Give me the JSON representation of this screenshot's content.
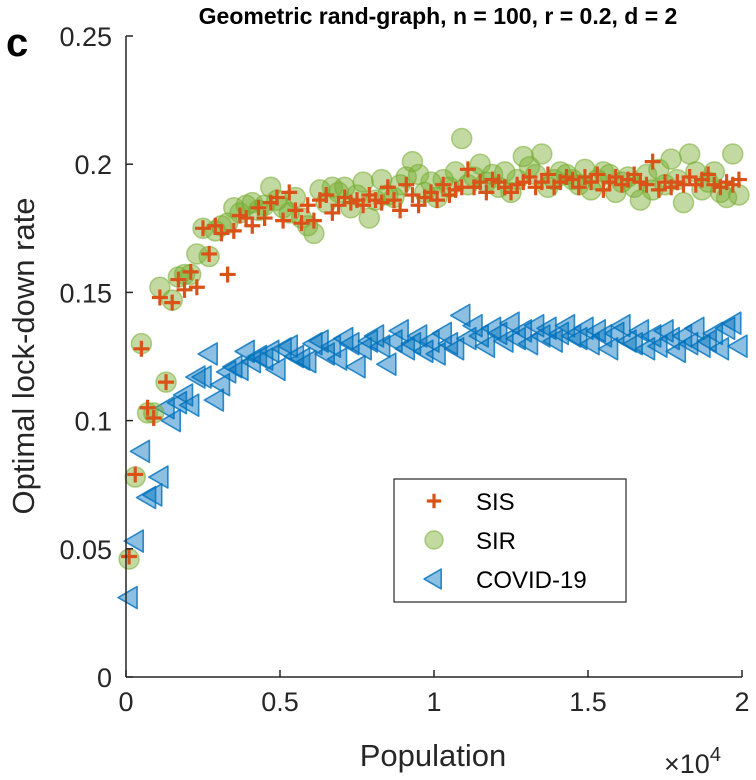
{
  "panel_label": "c",
  "chart_data": {
    "type": "scatter",
    "title": "Geometric rand-graph, n = 100, r = 0.2, d = 2",
    "xlabel": "Population",
    "ylabel": "Optimal lock-down rate",
    "x_exponent_label": "×10",
    "x_exponent_power": "4",
    "xlim": [
      0,
      20000
    ],
    "ylim": [
      0,
      0.25
    ],
    "xticks": [
      0,
      5000,
      10000,
      15000,
      20000
    ],
    "xtick_labels": [
      "0",
      "0.5",
      "1",
      "1.5",
      "2"
    ],
    "yticks": [
      0,
      0.05,
      0.1,
      0.15,
      0.2,
      0.25
    ],
    "ytick_labels": [
      "0",
      "0.05",
      "0.1",
      "0.15",
      "0.2",
      "0.25"
    ],
    "legend_position": "lower-center",
    "series": [
      {
        "name": "SIS",
        "marker": "plus",
        "color": "#D95319",
        "x": [
          100,
          300,
          500,
          700,
          900,
          1100,
          1300,
          1500,
          1700,
          1900,
          2100,
          2300,
          2500,
          2700,
          2900,
          3100,
          3300,
          3500,
          3700,
          3900,
          4100,
          4300,
          4500,
          4700,
          4900,
          5100,
          5300,
          5500,
          5700,
          5900,
          6100,
          6300,
          6500,
          6700,
          6900,
          7100,
          7300,
          7500,
          7700,
          7900,
          8100,
          8300,
          8500,
          8700,
          8900,
          9100,
          9300,
          9500,
          9700,
          9900,
          10100,
          10300,
          10500,
          10700,
          10900,
          11100,
          11300,
          11500,
          11700,
          11900,
          12100,
          12300,
          12500,
          12700,
          12900,
          13100,
          13300,
          13500,
          13700,
          13900,
          14100,
          14300,
          14500,
          14700,
          14900,
          15100,
          15300,
          15500,
          15700,
          15900,
          16100,
          16300,
          16500,
          16700,
          16900,
          17100,
          17300,
          17500,
          17700,
          17900,
          18100,
          18300,
          18500,
          18700,
          18900,
          19100,
          19300,
          19500,
          19700,
          19900
        ],
        "y": [
          0.047,
          0.079,
          0.128,
          0.105,
          0.101,
          0.148,
          0.115,
          0.146,
          0.155,
          0.151,
          0.158,
          0.152,
          0.175,
          0.165,
          0.176,
          0.173,
          0.157,
          0.174,
          0.18,
          0.179,
          0.176,
          0.183,
          0.179,
          0.185,
          0.187,
          0.178,
          0.189,
          0.182,
          0.177,
          0.184,
          0.178,
          0.186,
          0.188,
          0.181,
          0.184,
          0.187,
          0.185,
          0.186,
          0.184,
          0.188,
          0.186,
          0.185,
          0.191,
          0.186,
          0.182,
          0.192,
          0.188,
          0.184,
          0.187,
          0.189,
          0.186,
          0.192,
          0.188,
          0.19,
          0.191,
          0.198,
          0.191,
          0.193,
          0.189,
          0.194,
          0.193,
          0.191,
          0.189,
          0.192,
          0.193,
          0.195,
          0.191,
          0.193,
          0.196,
          0.191,
          0.193,
          0.195,
          0.194,
          0.191,
          0.195,
          0.193,
          0.196,
          0.19,
          0.193,
          0.195,
          0.192,
          0.194,
          0.196,
          0.193,
          0.192,
          0.201,
          0.19,
          0.193,
          0.191,
          0.193,
          0.192,
          0.195,
          0.192,
          0.194,
          0.196,
          0.192,
          0.191,
          0.193,
          0.192,
          0.194
        ]
      },
      {
        "name": "SIR",
        "marker": "circle",
        "color": "#77AC30",
        "x": [
          100,
          300,
          500,
          700,
          900,
          1100,
          1300,
          1500,
          1700,
          1900,
          2100,
          2300,
          2500,
          2700,
          2900,
          3100,
          3300,
          3500,
          3700,
          3900,
          4100,
          4300,
          4500,
          4700,
          4900,
          5100,
          5300,
          5500,
          5700,
          5900,
          6100,
          6300,
          6500,
          6700,
          6900,
          7100,
          7300,
          7500,
          7700,
          7900,
          8100,
          8300,
          8500,
          8700,
          8900,
          9100,
          9300,
          9500,
          9700,
          9900,
          10100,
          10300,
          10500,
          10700,
          10900,
          11100,
          11300,
          11500,
          11700,
          11900,
          12100,
          12300,
          12500,
          12700,
          12900,
          13100,
          13300,
          13500,
          13700,
          13900,
          14100,
          14300,
          14500,
          14700,
          14900,
          15100,
          15300,
          15500,
          15700,
          15900,
          16100,
          16300,
          16500,
          16700,
          16900,
          17100,
          17300,
          17500,
          17700,
          17900,
          18100,
          18300,
          18500,
          18700,
          18900,
          19100,
          19300,
          19500,
          19700,
          19900
        ],
        "y": [
          0.046,
          0.078,
          0.13,
          0.103,
          0.103,
          0.152,
          0.115,
          0.147,
          0.156,
          0.157,
          0.157,
          0.165,
          0.175,
          0.164,
          0.174,
          0.176,
          0.177,
          0.183,
          0.181,
          0.184,
          0.185,
          0.182,
          0.184,
          0.191,
          0.186,
          0.183,
          0.181,
          0.187,
          0.179,
          0.176,
          0.173,
          0.19,
          0.185,
          0.191,
          0.189,
          0.191,
          0.183,
          0.188,
          0.193,
          0.179,
          0.186,
          0.194,
          0.188,
          0.187,
          0.192,
          0.195,
          0.201,
          0.196,
          0.189,
          0.193,
          0.187,
          0.194,
          0.191,
          0.197,
          0.21,
          0.192,
          0.195,
          0.2,
          0.193,
          0.196,
          0.191,
          0.197,
          0.189,
          0.194,
          0.203,
          0.199,
          0.196,
          0.204,
          0.191,
          0.194,
          0.197,
          0.196,
          0.194,
          0.192,
          0.198,
          0.19,
          0.194,
          0.197,
          0.196,
          0.189,
          0.193,
          0.195,
          0.191,
          0.186,
          0.196,
          0.19,
          0.198,
          0.192,
          0.202,
          0.194,
          0.185,
          0.204,
          0.197,
          0.19,
          0.193,
          0.197,
          0.189,
          0.187,
          0.204,
          0.188
        ]
      },
      {
        "name": "COVID-19",
        "marker": "triangle-left",
        "color": "#0072BD",
        "x": [
          100,
          300,
          500,
          700,
          900,
          1100,
          1300,
          1500,
          1700,
          1900,
          2100,
          2300,
          2500,
          2700,
          2900,
          3100,
          3300,
          3500,
          3700,
          3900,
          4100,
          4300,
          4500,
          4700,
          4900,
          5100,
          5300,
          5500,
          5700,
          5900,
          6100,
          6300,
          6500,
          6700,
          6900,
          7100,
          7300,
          7500,
          7700,
          7900,
          8100,
          8300,
          8500,
          8700,
          8900,
          9100,
          9300,
          9500,
          9700,
          9900,
          10100,
          10300,
          10500,
          10700,
          10900,
          11100,
          11300,
          11500,
          11700,
          11900,
          12100,
          12300,
          12500,
          12700,
          12900,
          13100,
          13300,
          13500,
          13700,
          13900,
          14100,
          14300,
          14500,
          14700,
          14900,
          15100,
          15300,
          15500,
          15700,
          15900,
          16100,
          16300,
          16500,
          16700,
          16900,
          17100,
          17300,
          17500,
          17700,
          17900,
          18100,
          18300,
          18500,
          18700,
          18900,
          19100,
          19300,
          19500,
          19700,
          19900
        ],
        "y": [
          0.031,
          0.053,
          0.088,
          0.07,
          0.071,
          0.078,
          0.105,
          0.1,
          0.107,
          0.11,
          0.106,
          0.117,
          0.117,
          0.126,
          0.108,
          0.114,
          0.119,
          0.121,
          0.12,
          0.127,
          0.123,
          0.125,
          0.124,
          0.127,
          0.12,
          0.128,
          0.129,
          0.125,
          0.124,
          0.123,
          0.13,
          0.131,
          0.126,
          0.129,
          0.124,
          0.132,
          0.13,
          0.121,
          0.128,
          0.131,
          0.133,
          0.129,
          0.122,
          0.131,
          0.135,
          0.128,
          0.13,
          0.133,
          0.127,
          0.131,
          0.126,
          0.134,
          0.13,
          0.128,
          0.141,
          0.132,
          0.137,
          0.133,
          0.129,
          0.136,
          0.134,
          0.131,
          0.138,
          0.132,
          0.135,
          0.13,
          0.137,
          0.133,
          0.136,
          0.131,
          0.134,
          0.137,
          0.133,
          0.132,
          0.136,
          0.13,
          0.135,
          0.133,
          0.128,
          0.134,
          0.137,
          0.131,
          0.13,
          0.135,
          0.128,
          0.133,
          0.129,
          0.135,
          0.132,
          0.127,
          0.133,
          0.13,
          0.136,
          0.129,
          0.131,
          0.134,
          0.128,
          0.136,
          0.138,
          0.129
        ]
      }
    ]
  }
}
